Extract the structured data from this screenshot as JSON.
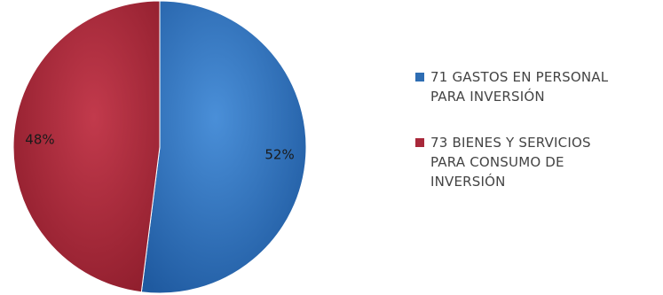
{
  "chart_data": {
    "type": "pie",
    "title": "",
    "slices": [
      {
        "label": "71 GASTOS EN PERSONAL PARA INVERSIÓN",
        "legend_lines": [
          "71 GASTOS EN PERSONAL",
          "PARA INVERSIÓN"
        ],
        "value": 52,
        "value_label": "52%",
        "color": "#2e6db3"
      },
      {
        "label": "73 BIENES Y SERVICIOS PARA CONSUMO DE INVERSIÓN",
        "legend_lines": [
          "73 BIENES Y SERVICIOS",
          "PARA CONSUMO DE",
          "INVERSIÓN"
        ],
        "value": 48,
        "value_label": "48%",
        "color": "#a8283a"
      }
    ],
    "legend_position": "right",
    "start_angle_deg": 0,
    "direction": "clockwise"
  }
}
